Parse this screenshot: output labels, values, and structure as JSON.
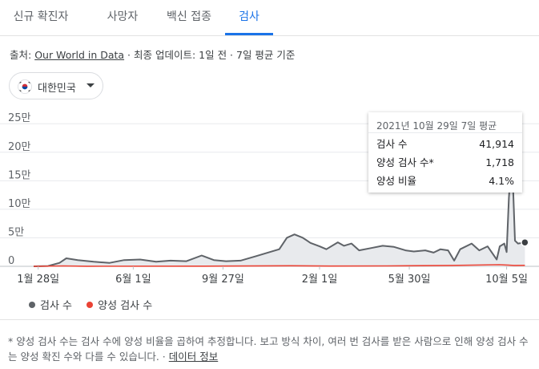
{
  "tabs": [
    {
      "label": "신규 확진자",
      "active": false
    },
    {
      "label": "사망자",
      "active": false
    },
    {
      "label": "백신 접종",
      "active": false
    },
    {
      "label": "검사",
      "active": true
    }
  ],
  "source": {
    "prefix": "출처: ",
    "link": "Our World in Data",
    "suffix": " · 최종 업데이트: 1일 전 · 7일 평균 기준"
  },
  "country_selector": {
    "label": "대한민국",
    "flag_icon": "south-korea-flag-icon"
  },
  "colors": {
    "tests": "#5f6368",
    "positive": "#ea4335",
    "tests_fill": "#e8eaed",
    "accent": "#1a73e8"
  },
  "tooltip": {
    "title": "2021년 10월 29일 7일 평균",
    "rows": [
      {
        "label": "검사 수",
        "value": "41,914"
      },
      {
        "label": "양성 검사 수*",
        "value": "1,718"
      },
      {
        "label": "양성 비율",
        "value": "4.1%"
      }
    ]
  },
  "legend": [
    {
      "label": "검사 수",
      "color": "#5f6368"
    },
    {
      "label": "양성 검사 수",
      "color": "#ea4335"
    }
  ],
  "footnote": {
    "text": "* 양성 검사 수는 검사 수에 양성 비율을 곱하여 추정합니다. 보고 방식 차이, 여러 번 검사를 받은 사람으로 인해 양성 검사 수는 양성 확진 수와 다를 수 있습니다. · ",
    "link": "데이터 정보"
  },
  "chart_data": {
    "type": "area",
    "y_ticks": [
      {
        "value": 0,
        "label": "0"
      },
      {
        "value": 50000,
        "label": "5만"
      },
      {
        "value": 100000,
        "label": "10만"
      },
      {
        "value": 150000,
        "label": "15만"
      },
      {
        "value": 200000,
        "label": "20만"
      },
      {
        "value": 250000,
        "label": "25만"
      }
    ],
    "ylim": [
      0,
      270000
    ],
    "x_ticks": [
      {
        "date": "2020-01-28",
        "label": "1월 28일"
      },
      {
        "date": "2020-06-01",
        "label": "6월 1일"
      },
      {
        "date": "2020-09-27",
        "label": "9월 27일"
      },
      {
        "date": "2021-02-01",
        "label": "2월 1일"
      },
      {
        "date": "2021-05-30",
        "label": "5월 30일"
      },
      {
        "date": "2021-10-05",
        "label": "10월 5일"
      }
    ],
    "xlim": [
      "2020-01-22",
      "2021-11-05"
    ],
    "grid": true,
    "series": [
      {
        "name": "검사 수",
        "color": "#5f6368",
        "points": [
          [
            "2020-01-22",
            0
          ],
          [
            "2020-02-10",
            500
          ],
          [
            "2020-02-25",
            6000
          ],
          [
            "2020-03-05",
            14000
          ],
          [
            "2020-03-20",
            11000
          ],
          [
            "2020-04-10",
            8000
          ],
          [
            "2020-05-01",
            6000
          ],
          [
            "2020-05-20",
            11000
          ],
          [
            "2020-06-10",
            12000
          ],
          [
            "2020-07-01",
            8000
          ],
          [
            "2020-07-20",
            10000
          ],
          [
            "2020-08-10",
            9000
          ],
          [
            "2020-08-30",
            19000
          ],
          [
            "2020-09-15",
            11000
          ],
          [
            "2020-10-01",
            9000
          ],
          [
            "2020-10-20",
            10000
          ],
          [
            "2020-11-10",
            18000
          ],
          [
            "2020-11-25",
            24000
          ],
          [
            "2020-12-10",
            30000
          ],
          [
            "2020-12-20",
            50000
          ],
          [
            "2020-12-30",
            56000
          ],
          [
            "2021-01-10",
            50000
          ],
          [
            "2021-01-20",
            41000
          ],
          [
            "2021-02-01",
            35000
          ],
          [
            "2021-02-10",
            30000
          ],
          [
            "2021-02-25",
            42000
          ],
          [
            "2021-03-05",
            36000
          ],
          [
            "2021-03-15",
            40000
          ],
          [
            "2021-03-25",
            28000
          ],
          [
            "2021-04-10",
            32000
          ],
          [
            "2021-04-25",
            36000
          ],
          [
            "2021-05-10",
            34000
          ],
          [
            "2021-05-25",
            28000
          ],
          [
            "2021-06-05",
            26000
          ],
          [
            "2021-06-20",
            28000
          ],
          [
            "2021-07-01",
            24000
          ],
          [
            "2021-07-10",
            30000
          ],
          [
            "2021-07-20",
            28000
          ],
          [
            "2021-07-28",
            10000
          ],
          [
            "2021-08-05",
            30000
          ],
          [
            "2021-08-20",
            40000
          ],
          [
            "2021-08-30",
            28000
          ],
          [
            "2021-09-10",
            35000
          ],
          [
            "2021-09-22",
            12000
          ],
          [
            "2021-09-26",
            35000
          ],
          [
            "2021-10-02",
            40000
          ],
          [
            "2021-10-05",
            25000
          ],
          [
            "2021-10-08",
            120000
          ],
          [
            "2021-10-12",
            195000
          ],
          [
            "2021-10-16",
            45000
          ],
          [
            "2021-10-20",
            40000
          ],
          [
            "2021-10-29",
            41914
          ]
        ]
      },
      {
        "name": "양성 검사 수",
        "color": "#ea4335",
        "points": [
          [
            "2020-01-22",
            0
          ],
          [
            "2020-03-01",
            700
          ],
          [
            "2020-04-01",
            150
          ],
          [
            "2020-08-25",
            350
          ],
          [
            "2020-12-25",
            1050
          ],
          [
            "2021-02-15",
            450
          ],
          [
            "2021-05-01",
            650
          ],
          [
            "2021-07-25",
            1600
          ],
          [
            "2021-09-25",
            2800
          ],
          [
            "2021-10-15",
            1500
          ],
          [
            "2021-10-29",
            1718
          ]
        ]
      }
    ],
    "highlight": {
      "date": "2021-10-29",
      "value": 41914
    }
  }
}
